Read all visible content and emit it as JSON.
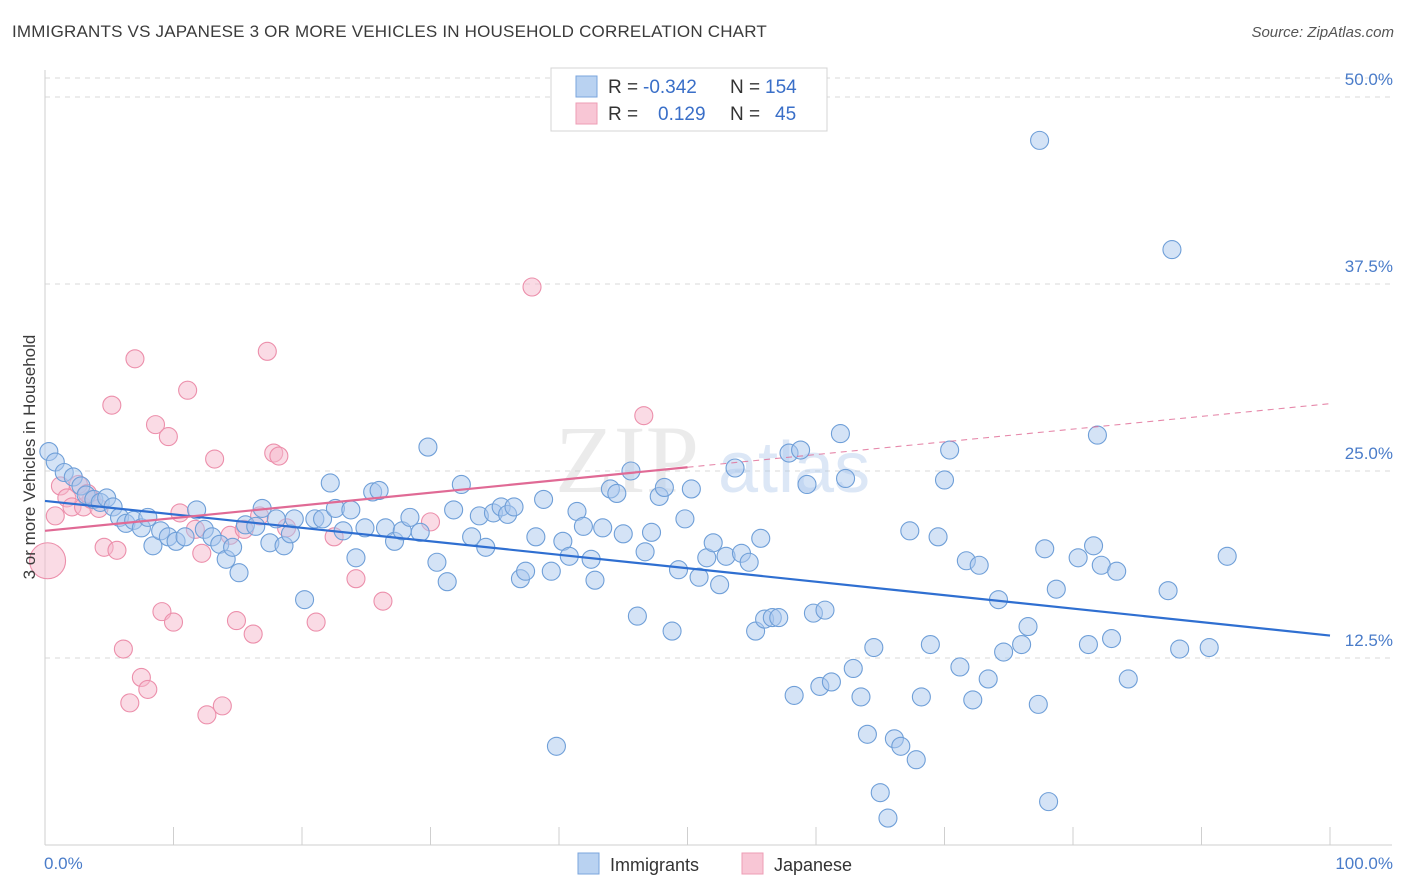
{
  "header": {
    "title": "IMMIGRANTS VS JAPANESE 3 OR MORE VEHICLES IN HOUSEHOLD CORRELATION CHART",
    "source": "Source: ZipAtlas.com"
  },
  "watermark": {
    "zip": "ZIP",
    "atlas": "atlas"
  },
  "legend_box": {
    "rows": [
      {
        "r_label": "R =",
        "r_value": "-0.342",
        "n_label": "N =",
        "n_value": "154"
      },
      {
        "r_label": "R =",
        "r_value": "0.129",
        "n_label": "N =",
        "n_value": "45"
      }
    ]
  },
  "bottom_legend": {
    "items": [
      "Immigrants",
      "Japanese"
    ]
  },
  "colors": {
    "immigrants_fill": "#a9c8ee",
    "immigrants_stroke": "#6f9fd8",
    "immigrants_line": "#2f6fd1",
    "japanese_fill": "#f6b8cb",
    "japanese_stroke": "#ec8fab",
    "japanese_line": "#e06a95",
    "tick_text": "#4a7cc9",
    "grid": "#d9d9d9"
  },
  "chart_data": {
    "type": "scatter",
    "title": "IMMIGRANTS VS JAPANESE 3 OR MORE VEHICLES IN HOUSEHOLD CORRELATION CHART",
    "xlabel": "",
    "ylabel": "3 or more Vehicles in Household",
    "xlim": [
      0,
      100
    ],
    "ylim": [
      0,
      50
    ],
    "x_tick_labels": [
      "0.0%",
      "100.0%"
    ],
    "y_ticks": [
      12.5,
      25.0,
      37.5,
      50.0
    ],
    "y_tick_labels": [
      "12.5%",
      "25.0%",
      "37.5%",
      "50.0%"
    ],
    "grid": "horizontal dashed",
    "legend_position": "top-center",
    "series": [
      {
        "name": "Immigrants",
        "r": -0.342,
        "n": 154,
        "trend": {
          "x": [
            0,
            100
          ],
          "y": [
            23.0,
            14.0
          ]
        },
        "points": [
          [
            0.3,
            26.3
          ],
          [
            0.8,
            25.6
          ],
          [
            1.5,
            24.9
          ],
          [
            2.2,
            24.6
          ],
          [
            2.8,
            24.0
          ],
          [
            3.2,
            23.4
          ],
          [
            3.8,
            23.1
          ],
          [
            4.3,
            22.9
          ],
          [
            4.8,
            23.2
          ],
          [
            5.3,
            22.6
          ],
          [
            5.8,
            21.9
          ],
          [
            6.3,
            21.5
          ],
          [
            6.9,
            21.7
          ],
          [
            7.5,
            21.2
          ],
          [
            8.0,
            21.9
          ],
          [
            8.4,
            20.0
          ],
          [
            9.0,
            21.0
          ],
          [
            9.6,
            20.6
          ],
          [
            10.2,
            20.3
          ],
          [
            10.9,
            20.6
          ],
          [
            11.8,
            22.4
          ],
          [
            12.4,
            21.1
          ],
          [
            13.0,
            20.6
          ],
          [
            13.6,
            20.1
          ],
          [
            14.1,
            19.1
          ],
          [
            14.6,
            19.9
          ],
          [
            15.1,
            18.2
          ],
          [
            15.6,
            21.4
          ],
          [
            16.4,
            21.3
          ],
          [
            16.9,
            22.5
          ],
          [
            17.5,
            20.2
          ],
          [
            18.0,
            21.8
          ],
          [
            18.6,
            20.0
          ],
          [
            19.1,
            20.8
          ],
          [
            19.4,
            21.8
          ],
          [
            20.2,
            16.4
          ],
          [
            21.0,
            21.8
          ],
          [
            21.6,
            21.8
          ],
          [
            22.2,
            24.2
          ],
          [
            22.6,
            22.5
          ],
          [
            23.2,
            21.0
          ],
          [
            23.8,
            22.4
          ],
          [
            24.2,
            19.2
          ],
          [
            24.9,
            21.2
          ],
          [
            25.5,
            23.6
          ],
          [
            26.0,
            23.7
          ],
          [
            26.5,
            21.2
          ],
          [
            27.2,
            20.3
          ],
          [
            27.8,
            21.0
          ],
          [
            28.4,
            21.9
          ],
          [
            29.2,
            20.9
          ],
          [
            29.8,
            26.6
          ],
          [
            30.5,
            18.9
          ],
          [
            31.3,
            17.6
          ],
          [
            31.8,
            22.4
          ],
          [
            32.4,
            24.1
          ],
          [
            33.2,
            20.6
          ],
          [
            33.8,
            22.0
          ],
          [
            34.3,
            19.9
          ],
          [
            34.9,
            22.2
          ],
          [
            35.5,
            22.6
          ],
          [
            36.0,
            22.1
          ],
          [
            36.5,
            22.6
          ],
          [
            37.0,
            17.8
          ],
          [
            37.4,
            18.3
          ],
          [
            38.2,
            20.6
          ],
          [
            38.8,
            23.1
          ],
          [
            39.4,
            18.3
          ],
          [
            39.8,
            6.6
          ],
          [
            40.3,
            20.3
          ],
          [
            40.8,
            19.3
          ],
          [
            41.4,
            22.3
          ],
          [
            41.9,
            21.3
          ],
          [
            42.5,
            19.1
          ],
          [
            42.8,
            17.7
          ],
          [
            43.4,
            21.2
          ],
          [
            44.0,
            23.8
          ],
          [
            44.5,
            23.5
          ],
          [
            45.0,
            20.8
          ],
          [
            45.6,
            25.0
          ],
          [
            46.1,
            15.3
          ],
          [
            46.7,
            19.6
          ],
          [
            47.2,
            20.9
          ],
          [
            47.8,
            23.3
          ],
          [
            48.2,
            23.9
          ],
          [
            48.8,
            14.3
          ],
          [
            49.3,
            18.4
          ],
          [
            49.8,
            21.8
          ],
          [
            50.3,
            23.8
          ],
          [
            50.9,
            17.9
          ],
          [
            51.5,
            19.2
          ],
          [
            52.0,
            20.2
          ],
          [
            52.5,
            17.4
          ],
          [
            53.0,
            19.3
          ],
          [
            53.7,
            25.2
          ],
          [
            54.2,
            19.5
          ],
          [
            54.8,
            18.9
          ],
          [
            55.3,
            14.3
          ],
          [
            55.7,
            20.5
          ],
          [
            56.0,
            15.1
          ],
          [
            56.6,
            15.2
          ],
          [
            57.1,
            15.2
          ],
          [
            57.9,
            26.2
          ],
          [
            58.3,
            10.0
          ],
          [
            58.8,
            26.4
          ],
          [
            59.3,
            24.1
          ],
          [
            59.8,
            15.5
          ],
          [
            60.3,
            10.6
          ],
          [
            60.7,
            15.7
          ],
          [
            61.2,
            10.9
          ],
          [
            61.9,
            27.5
          ],
          [
            62.3,
            24.5
          ],
          [
            62.9,
            11.8
          ],
          [
            63.5,
            9.9
          ],
          [
            64.0,
            7.4
          ],
          [
            64.5,
            13.2
          ],
          [
            65.0,
            3.5
          ],
          [
            65.6,
            1.8
          ],
          [
            66.1,
            7.1
          ],
          [
            66.6,
            6.6
          ],
          [
            67.3,
            21.0
          ],
          [
            67.8,
            5.7
          ],
          [
            68.2,
            9.9
          ],
          [
            68.9,
            13.4
          ],
          [
            69.5,
            20.6
          ],
          [
            70.0,
            24.4
          ],
          [
            70.4,
            26.4
          ],
          [
            71.2,
            11.9
          ],
          [
            71.7,
            19.0
          ],
          [
            72.2,
            9.7
          ],
          [
            72.7,
            18.7
          ],
          [
            73.4,
            11.1
          ],
          [
            74.2,
            16.4
          ],
          [
            74.6,
            12.9
          ],
          [
            76.0,
            13.4
          ],
          [
            76.5,
            14.6
          ],
          [
            77.3,
            9.4
          ],
          [
            77.8,
            19.8
          ],
          [
            78.1,
            2.9
          ],
          [
            78.7,
            17.1
          ],
          [
            80.4,
            19.2
          ],
          [
            81.2,
            13.4
          ],
          [
            81.6,
            20.0
          ],
          [
            81.9,
            27.4
          ],
          [
            82.2,
            18.7
          ],
          [
            83.0,
            13.8
          ],
          [
            83.4,
            18.3
          ],
          [
            84.3,
            11.1
          ],
          [
            87.4,
            17.0
          ],
          [
            88.3,
            13.1
          ],
          [
            77.4,
            47.1
          ],
          [
            87.7,
            39.8
          ],
          [
            92.0,
            19.3
          ],
          [
            90.6,
            13.2
          ]
        ]
      },
      {
        "name": "Japanese",
        "r": 0.129,
        "n": 45,
        "trend": {
          "x": [
            0,
            100
          ],
          "y": [
            21.0,
            29.5
          ],
          "solid_until": 50
        },
        "points": [
          [
            0.2,
            19.0
          ],
          [
            0.8,
            22.0
          ],
          [
            1.2,
            24.0
          ],
          [
            1.7,
            23.2
          ],
          [
            2.1,
            22.6
          ],
          [
            2.6,
            24.1
          ],
          [
            3.0,
            22.6
          ],
          [
            3.6,
            23.1
          ],
          [
            4.2,
            22.5
          ],
          [
            4.6,
            19.9
          ],
          [
            5.2,
            29.4
          ],
          [
            5.6,
            19.7
          ],
          [
            6.1,
            13.1
          ],
          [
            6.6,
            9.5
          ],
          [
            7.0,
            32.5
          ],
          [
            7.5,
            11.2
          ],
          [
            8.0,
            10.4
          ],
          [
            8.6,
            28.1
          ],
          [
            9.1,
            15.6
          ],
          [
            9.6,
            27.3
          ],
          [
            10.0,
            14.9
          ],
          [
            10.5,
            22.2
          ],
          [
            11.1,
            30.4
          ],
          [
            11.7,
            21.1
          ],
          [
            12.2,
            19.5
          ],
          [
            12.6,
            8.7
          ],
          [
            13.2,
            25.8
          ],
          [
            13.8,
            9.3
          ],
          [
            14.4,
            20.7
          ],
          [
            14.9,
            15.0
          ],
          [
            15.5,
            21.1
          ],
          [
            16.2,
            14.1
          ],
          [
            16.7,
            22.0
          ],
          [
            17.3,
            33.0
          ],
          [
            17.8,
            26.2
          ],
          [
            18.2,
            26.0
          ],
          [
            18.8,
            21.2
          ],
          [
            21.1,
            14.9
          ],
          [
            22.5,
            20.6
          ],
          [
            24.2,
            17.8
          ],
          [
            26.3,
            16.3
          ],
          [
            30.0,
            21.6
          ],
          [
            37.9,
            37.3
          ],
          [
            46.6,
            28.7
          ],
          [
            3.3,
            23.5
          ]
        ]
      }
    ]
  }
}
